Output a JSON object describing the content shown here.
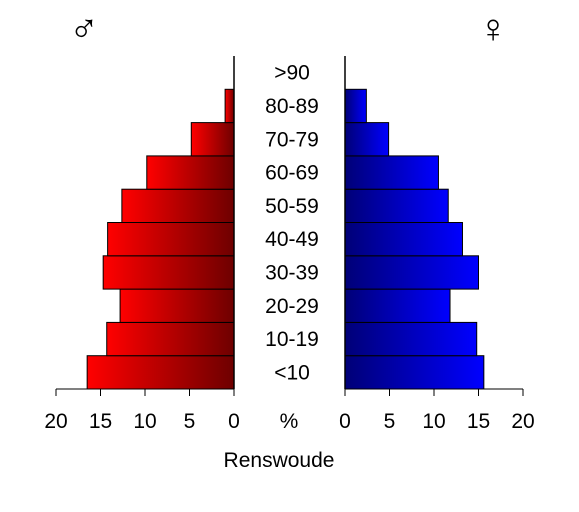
{
  "chart_data": {
    "type": "bar",
    "orientation": "horizontal-pyramid",
    "title": "",
    "xlabel": "Renswoude",
    "center_axis_label": "%",
    "categories": [
      "<10",
      "10-19",
      "20-29",
      "30-39",
      "40-49",
      "50-59",
      "60-69",
      "70-79",
      "80-89",
      ">90"
    ],
    "series": [
      {
        "name": "♂",
        "side": "left",
        "values": [
          16.5,
          14.3,
          12.8,
          14.7,
          14.2,
          12.6,
          9.8,
          4.8,
          1.0,
          0.0
        ],
        "gradient": [
          "#ff0000",
          "#6e0000"
        ]
      },
      {
        "name": "♀",
        "side": "right",
        "values": [
          15.6,
          14.8,
          11.8,
          15.0,
          13.2,
          11.6,
          10.5,
          4.9,
          2.4,
          0.0
        ],
        "gradient": [
          "#000077",
          "#0000ff"
        ]
      }
    ],
    "xlim": [
      0,
      20
    ],
    "ticks": [
      0,
      5,
      10,
      15,
      20
    ],
    "tick_labels": [
      "0",
      "5",
      "10",
      "15",
      "20"
    ],
    "grid": false,
    "legend": "symbols at top corners"
  }
}
